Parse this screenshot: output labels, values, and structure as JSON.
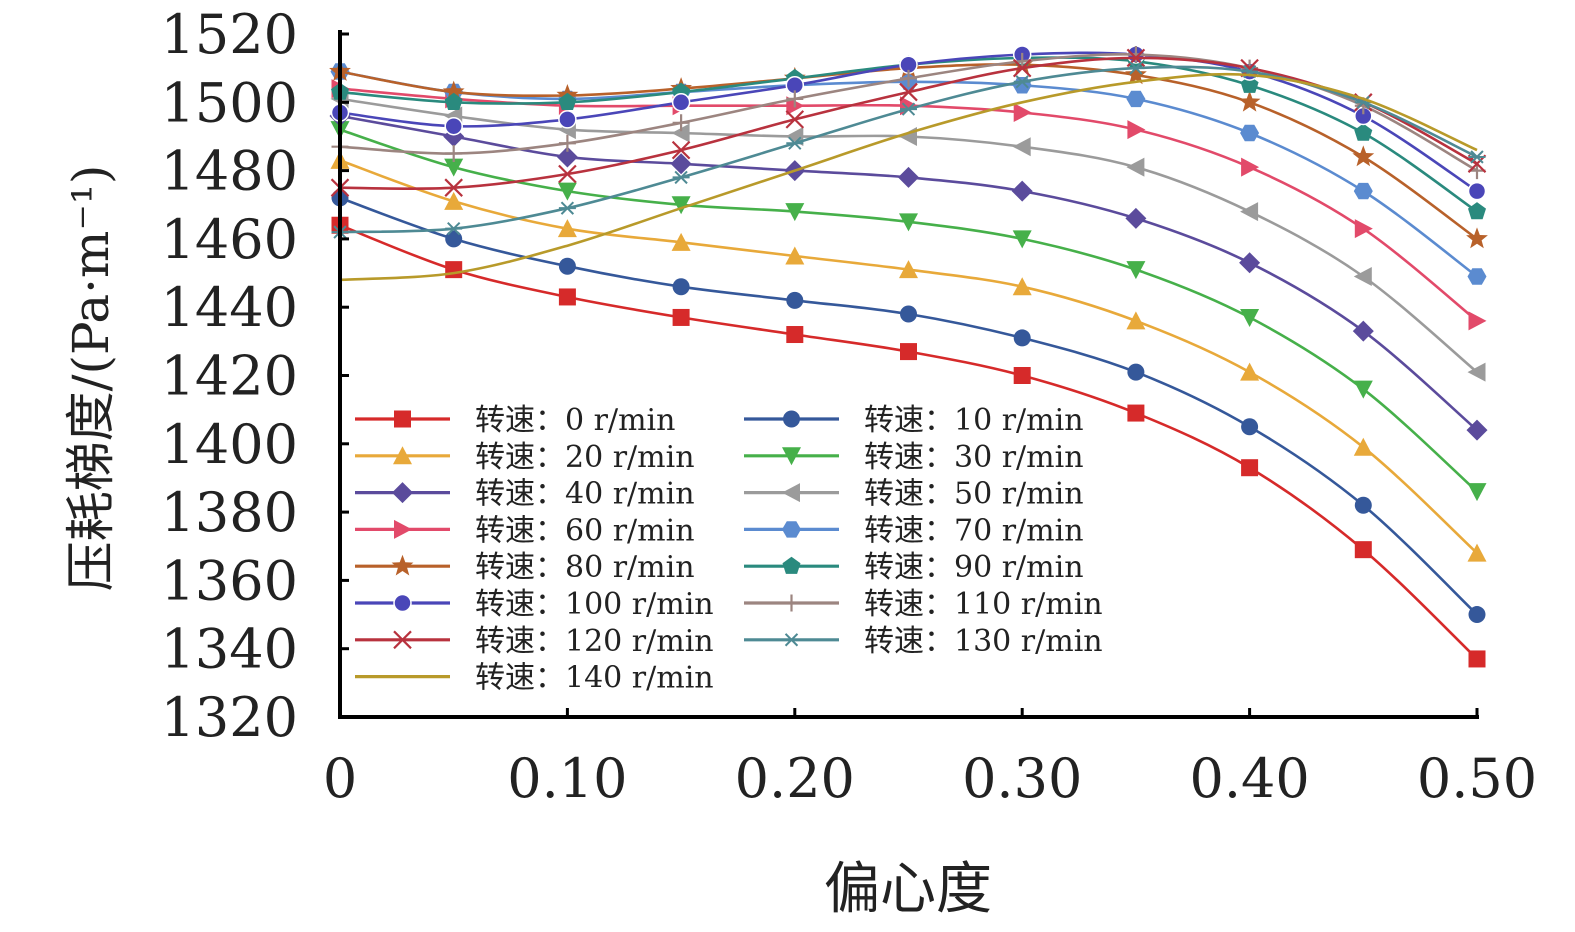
{
  "chart_data": {
    "type": "line",
    "title": "",
    "xlabel": "偏心度",
    "ylabel": "压耗梯度/(Pa·m⁻¹)",
    "xlim": [
      0,
      0.5
    ],
    "ylim": [
      1320,
      1520
    ],
    "x_ticks": [
      "0",
      "0.10",
      "0.20",
      "0.30",
      "0.40",
      "0.50"
    ],
    "y_ticks": [
      "1320",
      "1340",
      "1360",
      "1380",
      "1400",
      "1420",
      "1440",
      "1460",
      "1480",
      "1500",
      "1520"
    ],
    "grid": false,
    "legend_position": "lower-left inside",
    "x": [
      0,
      0.05,
      0.1,
      0.15,
      0.2,
      0.25,
      0.3,
      0.35,
      0.4,
      0.45,
      0.5
    ],
    "series": [
      {
        "name": "转速：0 r/min",
        "color": "#d62a2a",
        "marker": "square",
        "values": [
          1464,
          1451,
          1443,
          1437,
          1432,
          1427,
          1420,
          1409,
          1393,
          1369,
          1337
        ]
      },
      {
        "name": "转速：10 r/min",
        "color": "#35589a",
        "marker": "circle",
        "values": [
          1472,
          1460,
          1452,
          1446,
          1442,
          1438,
          1431,
          1421,
          1405,
          1382,
          1350
        ]
      },
      {
        "name": "转速：20 r/min",
        "color": "#e8a93a",
        "marker": "triangle-up",
        "values": [
          1483,
          1471,
          1463,
          1459,
          1455,
          1451,
          1446,
          1436,
          1421,
          1399,
          1368
        ]
      },
      {
        "name": "转速：30 r/min",
        "color": "#46b04a",
        "marker": "triangle-down",
        "values": [
          1492,
          1481,
          1474,
          1470,
          1468,
          1465,
          1460,
          1451,
          1437,
          1416,
          1386
        ]
      },
      {
        "name": "转速：40 r/min",
        "color": "#5b4b9c",
        "marker": "diamond",
        "values": [
          1496,
          1490,
          1484,
          1482,
          1480,
          1478,
          1474,
          1466,
          1453,
          1433,
          1404
        ]
      },
      {
        "name": "转速：50 r/min",
        "color": "#9b9b9b",
        "marker": "triangle-left",
        "values": [
          1501,
          1496,
          1492,
          1491,
          1490,
          1490,
          1487,
          1481,
          1468,
          1449,
          1421
        ]
      },
      {
        "name": "转速：60 r/min",
        "color": "#e24a6a",
        "marker": "triangle-right",
        "values": [
          1504,
          1501,
          1499,
          1499,
          1499,
          1499,
          1497,
          1492,
          1481,
          1463,
          1436
        ]
      },
      {
        "name": "转速：70 r/min",
        "color": "#5b8bd0",
        "marker": "hexagon",
        "values": [
          1509,
          1503,
          1501,
          1503,
          1505,
          1506,
          1505,
          1501,
          1491,
          1474,
          1449
        ]
      },
      {
        "name": "转速：80 r/min",
        "color": "#b8612a",
        "marker": "star",
        "values": [
          1509,
          1503,
          1502,
          1504,
          1507,
          1510,
          1511,
          1508,
          1500,
          1484,
          1460
        ]
      },
      {
        "name": "转速：90 r/min",
        "color": "#2a8a7e",
        "marker": "pentagon",
        "values": [
          1503,
          1500,
          1500,
          1503,
          1507,
          1511,
          1513,
          1512,
          1505,
          1491,
          1468
        ]
      },
      {
        "name": "转速：100 r/min",
        "color": "#4a46b8",
        "marker": "sphere",
        "values": [
          1497,
          1493,
          1495,
          1500,
          1505,
          1511,
          1514,
          1514,
          1509,
          1496,
          1474
        ]
      },
      {
        "name": "转速：110 r/min",
        "color": "#9c8580",
        "marker": "plus",
        "values": [
          1487,
          1485,
          1488,
          1494,
          1501,
          1507,
          1512,
          1514,
          1510,
          1499,
          1480
        ]
      },
      {
        "name": "转速：120 r/min",
        "color": "#b8323e",
        "marker": "cross",
        "values": [
          1475,
          1475,
          1479,
          1486,
          1495,
          1503,
          1510,
          1513,
          1510,
          1500,
          1482
        ]
      },
      {
        "name": "转速：130 r/min",
        "color": "#4e8a94",
        "marker": "asterisk",
        "values": [
          1462,
          1463,
          1469,
          1478,
          1488,
          1498,
          1506,
          1510,
          1509,
          1500,
          1484
        ]
      },
      {
        "name": "转速：140 r/min",
        "color": "#b89a2a",
        "marker": "none",
        "values": [
          1448,
          1450,
          1458,
          1469,
          1480,
          1491,
          1500,
          1506,
          1508,
          1501,
          1486
        ]
      }
    ]
  }
}
